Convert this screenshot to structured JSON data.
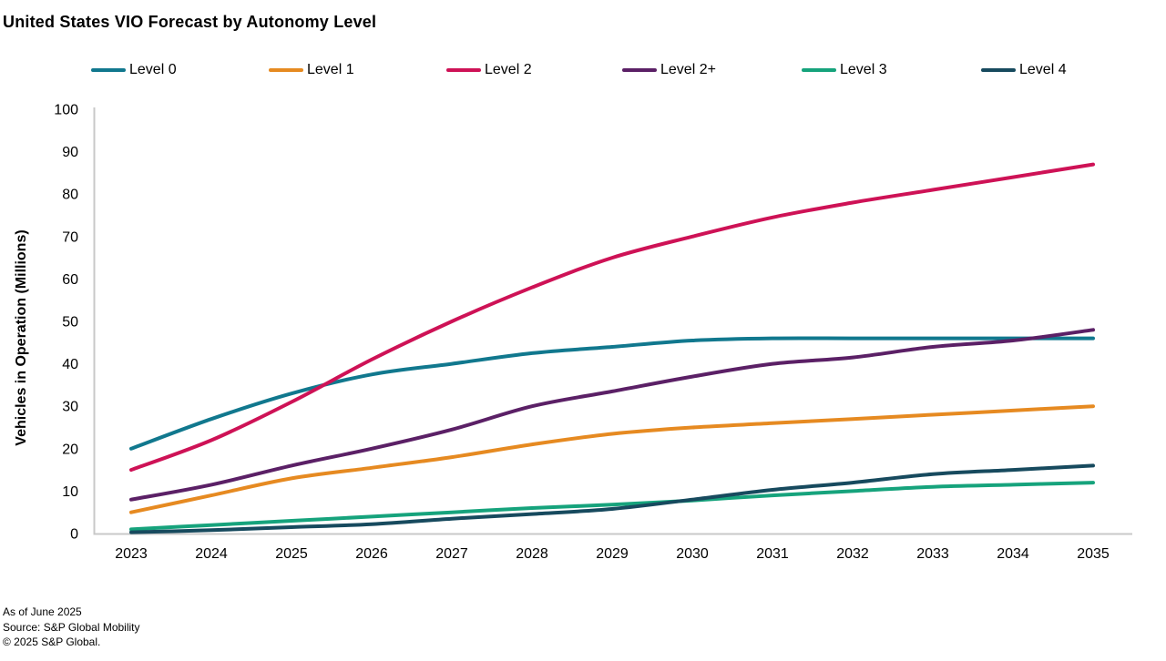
{
  "chart_data": {
    "type": "line",
    "title": "United States VIO Forecast by Autonomy Level",
    "xlabel": "",
    "ylabel": "Vehicles in Operation (Millions)",
    "x": [
      2023,
      2024,
      2025,
      2026,
      2027,
      2028,
      2029,
      2030,
      2031,
      2032,
      2033,
      2034,
      2035
    ],
    "xticks": [
      2023,
      2024,
      2025,
      2026,
      2027,
      2028,
      2029,
      2030,
      2031,
      2032,
      2033,
      2034,
      2035
    ],
    "yticks": [
      0,
      10,
      20,
      30,
      40,
      50,
      60,
      70,
      80,
      90,
      100
    ],
    "ylim": [
      0,
      100
    ],
    "grid": false,
    "legend_position": "top",
    "axis_color": "#c8c8c8",
    "series": [
      {
        "name": "Level 0",
        "color": "#11788e",
        "values": [
          20,
          27,
          33,
          37.5,
          40,
          42.5,
          44,
          45.5,
          46,
          46,
          46,
          46,
          46
        ]
      },
      {
        "name": "Level 1",
        "color": "#e68a21",
        "values": [
          5,
          9,
          13,
          15.5,
          18,
          21,
          23.5,
          25,
          26,
          27,
          28,
          29,
          30
        ]
      },
      {
        "name": "Level 2",
        "color": "#ce1256",
        "values": [
          15,
          22,
          31,
          41,
          50,
          58,
          65,
          70,
          74.5,
          78,
          81,
          84,
          87
        ]
      },
      {
        "name": "Level 2+",
        "color": "#5b2066",
        "values": [
          8,
          11.5,
          16,
          20,
          24.5,
          30,
          33.5,
          37,
          40,
          41.5,
          44,
          45.5,
          48
        ]
      },
      {
        "name": "Level 3",
        "color": "#16a37c",
        "values": [
          1,
          2,
          3,
          4,
          5,
          6,
          6.8,
          7.8,
          9,
          10,
          11,
          11.5,
          12
        ]
      },
      {
        "name": "Level 4",
        "color": "#174a5e",
        "values": [
          0.3,
          0.8,
          1.5,
          2.2,
          3.5,
          4.6,
          5.8,
          8,
          10.3,
          12,
          14,
          15,
          16
        ]
      }
    ]
  },
  "footer": {
    "as_of": "As of June 2025",
    "source": "Source: S&P Global Mobility",
    "copyright": "© 2025 S&P Global."
  }
}
